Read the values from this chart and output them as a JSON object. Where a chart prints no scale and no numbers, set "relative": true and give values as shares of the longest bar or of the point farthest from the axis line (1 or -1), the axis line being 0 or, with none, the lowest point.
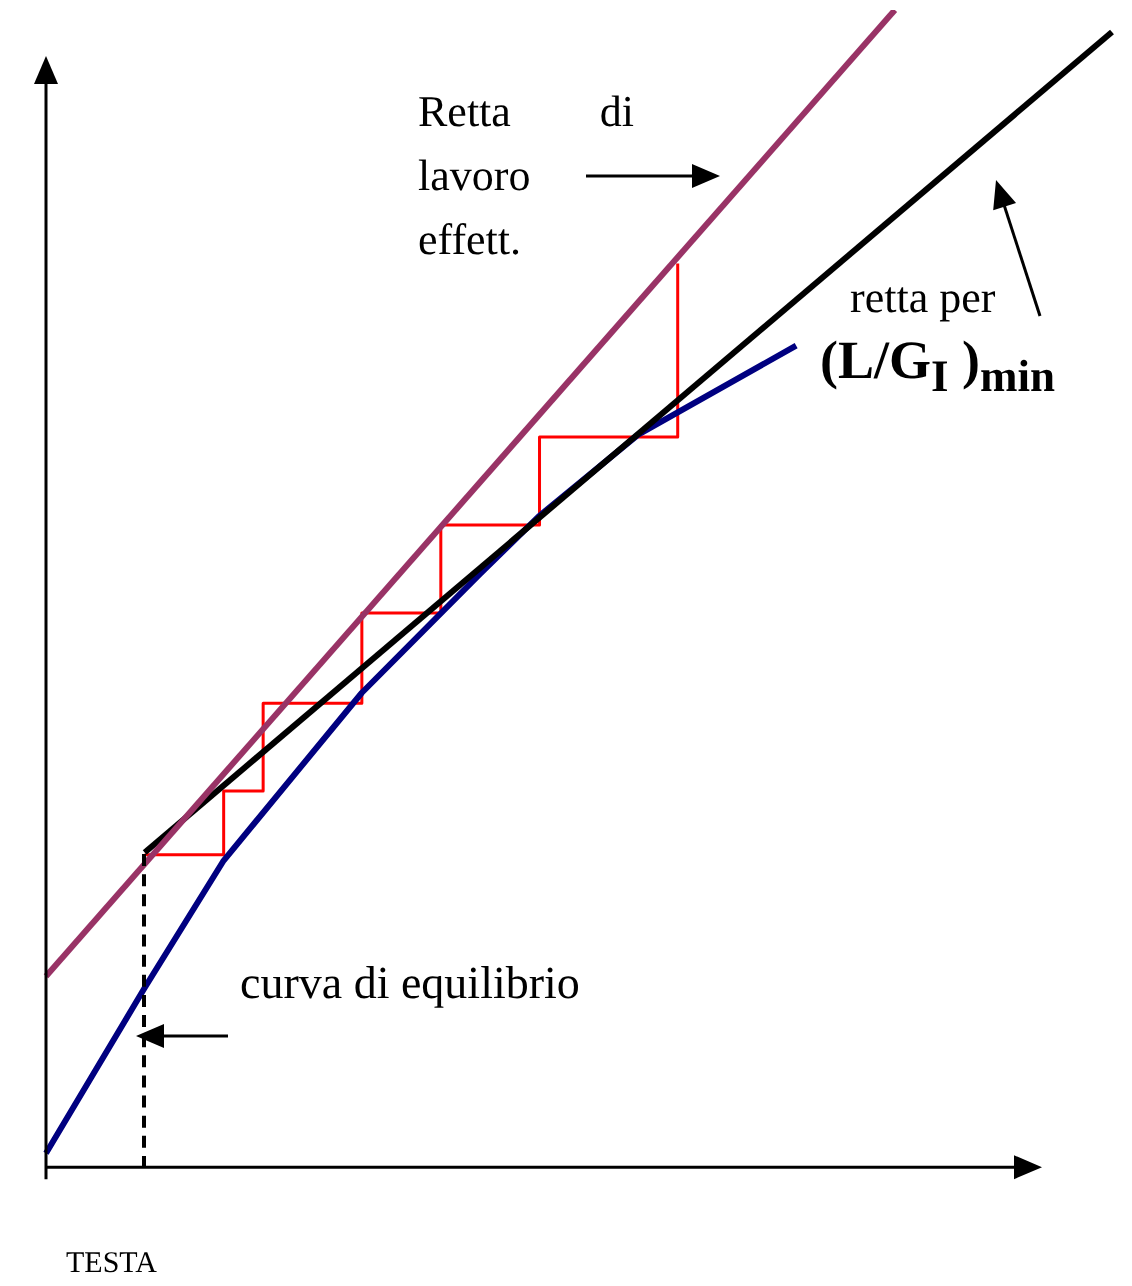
{
  "chart_data": {
    "type": "line",
    "relative": true,
    "grid": false,
    "legend": false,
    "marker": "none",
    "categories": [
      null,
      null,
      null,
      null,
      null,
      null,
      null,
      null,
      null,
      null,
      null,
      null,
      null,
      null,
      null,
      null,
      null,
      null,
      null,
      null,
      null,
      null,
      null,
      null,
      null,
      null,
      null,
      null,
      null,
      null,
      null,
      null,
      null,
      null,
      null,
      null,
      null,
      null,
      null,
      null,
      null,
      null,
      null,
      null,
      null,
      null,
      null,
      null,
      null,
      null,
      null,
      null,
      null,
      null,
      null
    ],
    "series": [
      {
        "color": "#993366",
        "values": [
          0.165,
          null,
          null,
          null,
          null,
          null,
          null,
          null,
          null,
          null,
          null,
          null,
          null,
          null,
          null,
          null,
          null,
          null,
          null,
          null,
          null,
          null,
          null,
          null,
          null,
          null,
          null,
          null,
          null,
          null,
          null,
          null,
          null,
          null,
          null,
          null,
          null,
          null,
          null,
          null,
          null,
          null,
          null,
          1.0,
          null,
          null,
          null,
          null,
          null,
          null,
          null,
          null,
          null,
          null,
          null
        ]
      },
      {
        "color": "#000000",
        "values": [
          null,
          null,
          null,
          null,
          null,
          0.272,
          null,
          null,
          null,
          null,
          null,
          null,
          null,
          null,
          null,
          null,
          null,
          null,
          null,
          null,
          null,
          null,
          null,
          null,
          null,
          null,
          null,
          null,
          null,
          null,
          null,
          null,
          null,
          null,
          null,
          null,
          null,
          null,
          null,
          null,
          null,
          null,
          null,
          null,
          null,
          null,
          null,
          null,
          null,
          null,
          null,
          null,
          null,
          null,
          0.981
        ]
      },
      {
        "color": "#000080",
        "values": [
          0.012,
          null,
          null,
          null,
          null,
          0.155,
          null,
          null,
          null,
          0.265,
          null,
          null,
          null,
          null,
          null,
          null,
          0.41,
          null,
          null,
          null,
          null,
          null,
          0.513,
          null,
          null,
          0.563,
          null,
          null,
          null,
          null,
          0.633,
          null,
          null,
          null,
          null,
          null,
          null,
          null,
          0.71,
          null,
          null,
          null,
          null,
          null,
          null,
          null,
          null,
          null,
          null,
          null,
          null,
          null,
          null,
          null,
          null
        ]
      },
      {
        "type": "step",
        "color": "#ff0000",
        "values": [
          null,
          null,
          null,
          null,
          null,
          0.27,
          null,
          null,
          null,
          0.325,
          null,
          0.401,
          null,
          null,
          null,
          null,
          0.479,
          null,
          null,
          null,
          0.555,
          null,
          null,
          null,
          null,
          0.631,
          null,
          null,
          null,
          null,
          null,
          null,
          0.781,
          null,
          null,
          null,
          null,
          null,
          null,
          null,
          null,
          null,
          null,
          null,
          null,
          null,
          null,
          null,
          null,
          null,
          null,
          null,
          null,
          null,
          null
        ]
      }
    ],
    "annotations": [
      "Retta di lavoro effett.",
      "retta per",
      "(L/G$_{I}$ )$_{min}$",
      "curva di equilibrio",
      "TESTA"
    ]
  }
}
